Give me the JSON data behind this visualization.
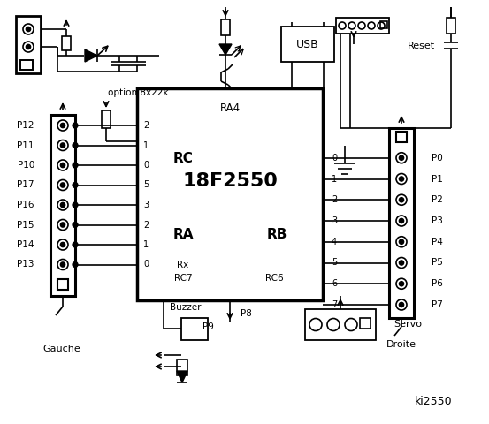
{
  "bg_color": "#ffffff",
  "line_color": "#000000",
  "chip_label": "18F2550",
  "chip_sublabel": "RA4",
  "rc_label": "RC",
  "ra_label": "RA",
  "rb_label": "RB",
  "rc_pins_left": [
    "2",
    "1",
    "0",
    "5",
    "3",
    "2",
    "1",
    "0"
  ],
  "rb_pins_right": [
    "0",
    "1",
    "2",
    "3",
    "4",
    "5",
    "6",
    "7"
  ],
  "left_labels": [
    "P12",
    "P11",
    "P10",
    "P17",
    "P16",
    "P15",
    "P14",
    "P13"
  ],
  "right_labels": [
    "P0",
    "P1",
    "P2",
    "P3",
    "P4",
    "P5",
    "P6",
    "P7"
  ],
  "bottom_left_label": "Gauche",
  "bottom_right_label": "Droite",
  "option_label": "option 8x22k",
  "reset_label": "Reset",
  "usb_label": "USB",
  "rc6_label": "RC6",
  "rc7_label": "RC7",
  "rx_label": "Rx",
  "buzzer_label": "Buzzer",
  "p9_label": "P9",
  "p8_label": "P8",
  "servo_label": "Servo",
  "ki_label": "ki2550"
}
